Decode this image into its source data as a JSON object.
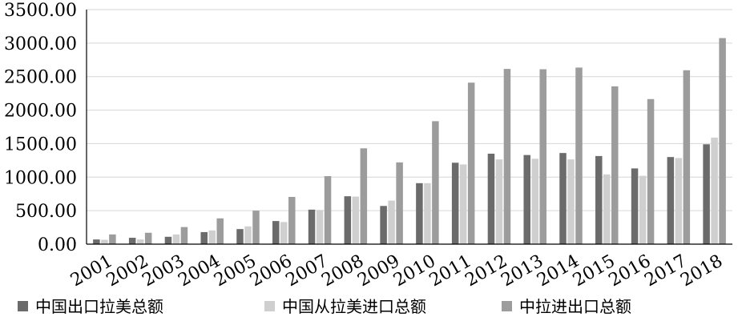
{
  "chart_data": {
    "type": "bar",
    "title": "",
    "xlabel": "",
    "ylabel": "",
    "ylim": [
      0,
      3500
    ],
    "yticks": [
      "0.00",
      "500.00",
      "1000.00",
      "1500.00",
      "2000.00",
      "2500.00",
      "3000.00",
      "3500.00"
    ],
    "grid": true,
    "legend_position": "bottom",
    "categories": [
      "2001",
      "2002",
      "2003",
      "2004",
      "2005",
      "2006",
      "2007",
      "2008",
      "2009",
      "2010",
      "2011",
      "2012",
      "2013",
      "2014",
      "2015",
      "2016",
      "2017",
      "2018"
    ],
    "series": [
      {
        "name": "中国出口拉美总额",
        "color": "#6b6b6b",
        "values": [
          70,
          95,
          110,
          180,
          225,
          345,
          515,
          715,
          570,
          910,
          1215,
          1350,
          1330,
          1360,
          1315,
          1130,
          1300,
          1490
        ]
      },
      {
        "name": "中国从拉美进口总额",
        "color": "#cfcfcf",
        "values": [
          65,
          70,
          145,
          205,
          265,
          330,
          510,
          710,
          650,
          910,
          1190,
          1265,
          1275,
          1265,
          1040,
          1020,
          1285,
          1590
        ]
      },
      {
        "name": "中拉进出口总额",
        "color": "#9c9c9c",
        "values": [
          145,
          170,
          255,
          385,
          500,
          705,
          1015,
          1430,
          1220,
          1835,
          2410,
          2615,
          2610,
          2635,
          2355,
          2165,
          2595,
          3075
        ]
      }
    ]
  }
}
